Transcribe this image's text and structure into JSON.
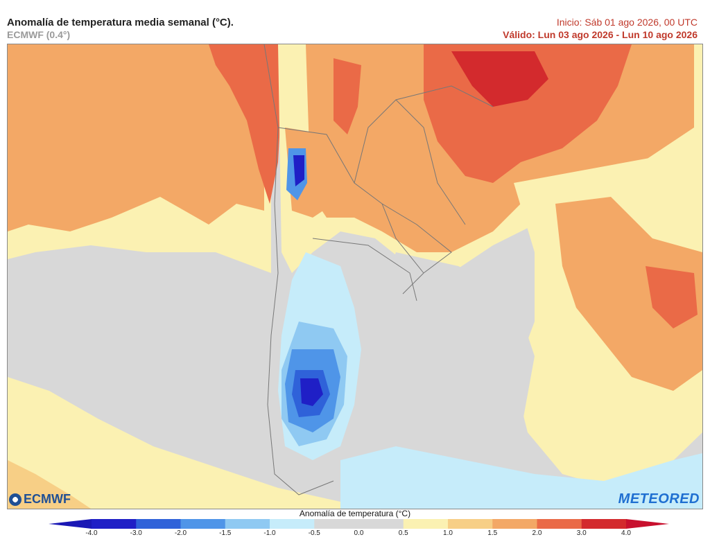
{
  "header": {
    "title": "Anomalía de temperatura media semanal (°C).",
    "model": "ECMWF (0.4°)",
    "init": "Inicio: Sáb 01 ago 2026, 00 UTC",
    "valid": "Válido: Lun 03 ago 2026 - Lun 10 ago 2026"
  },
  "logos": {
    "left": "ECMWF",
    "right": "METEORED"
  },
  "colorbar": {
    "title": "Anomalía de temperatura (°C)",
    "ticks": [
      "-4.0",
      "-3.0",
      "-2.0",
      "-1.5",
      "-1.0",
      "-0.5",
      "0.0",
      "0.5",
      "1.0",
      "1.5",
      "2.0",
      "3.0",
      "4.0"
    ],
    "colors": [
      "#1f1fc6",
      "#2f62d9",
      "#4f95e8",
      "#8fc9f2",
      "#c6ecfa",
      "#d8d8d8",
      "#d8d8d8",
      "#fbf1b2",
      "#f7cf86",
      "#f3a866",
      "#ea6a47",
      "#d32a2d"
    ],
    "min_color": "#1a18b5",
    "max_color": "#c8102e"
  },
  "map_colors": {
    "ocean_neutral": "#d8d8d8",
    "warm_light": "#fbf1b2",
    "warm_mid": "#f7cf86",
    "warm": "#f3a866",
    "hot": "#ea6a47",
    "very_hot": "#d32a2d",
    "cool_light": "#c6ecfa",
    "cool": "#8fc9f2",
    "cold": "#4f95e8",
    "very_cold": "#2f62d9",
    "extreme_cold": "#1f1fc6",
    "borders": "#777777"
  }
}
